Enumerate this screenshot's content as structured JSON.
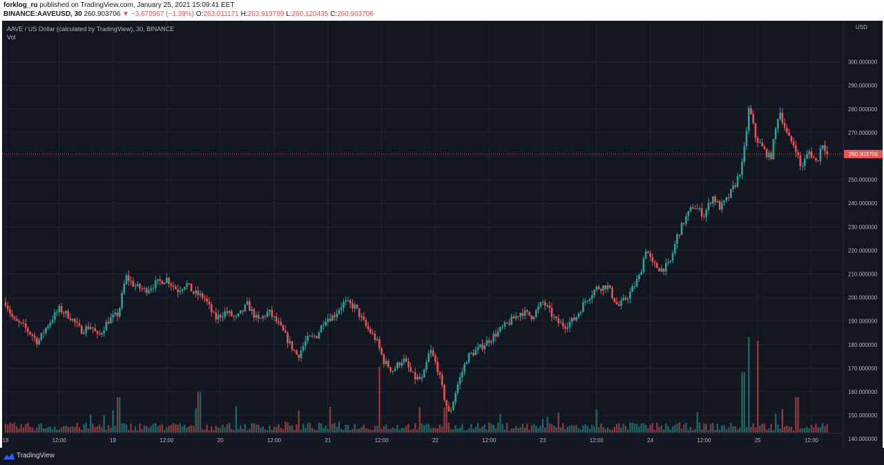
{
  "header": {
    "publisher": "forklog_ru",
    "published_text": "published on TradingView.com, January 25, 2021 15:09:41 EET",
    "symbol": "BINANCE:AAVEUSD, 30",
    "last": "260.903706",
    "change": "▼ −3.670967 (−1.39%)",
    "o_label": "O:",
    "o_value": "263.011171",
    "h_label": "H:",
    "h_value": "263.919789",
    "l_label": "L:",
    "l_value": "260.120435",
    "c_label": "C:",
    "c_value": "260.903706"
  },
  "legend": {
    "main": "AAVE / US Dollar (calculated by TradingView), 30, BINANCE",
    "vol": "Vol"
  },
  "axis": {
    "currency": "USD"
  },
  "footer": {
    "brand": "TradingView"
  },
  "colors": {
    "up": "#26a69a",
    "down": "#ef5350",
    "background": "#131722",
    "grid": "#1f2330",
    "text": "#b2b5be"
  },
  "chart_data": {
    "type": "candlestick",
    "interval": "30",
    "y_axis": {
      "ticks": [
        140,
        150,
        160,
        170,
        180,
        190,
        200,
        210,
        220,
        230,
        240,
        250,
        260,
        270,
        280,
        290,
        300
      ],
      "decimals": 6
    },
    "x_axis": {
      "ticks": [
        {
          "label": "18",
          "day": 0
        },
        {
          "label": "12:00",
          "day": 0.5
        },
        {
          "label": "19",
          "day": 1
        },
        {
          "label": "12:00",
          "day": 1.5
        },
        {
          "label": "20",
          "day": 2
        },
        {
          "label": "12:00",
          "day": 2.5
        },
        {
          "label": "21",
          "day": 3
        },
        {
          "label": "12:00",
          "day": 3.5
        },
        {
          "label": "22",
          "day": 4
        },
        {
          "label": "12:00",
          "day": 4.5
        },
        {
          "label": "23",
          "day": 5
        },
        {
          "label": "12:00",
          "day": 5.5
        },
        {
          "label": "24",
          "day": 6
        },
        {
          "label": "12:00",
          "day": 6.5
        },
        {
          "label": "25",
          "day": 7
        },
        {
          "label": "12:00",
          "day": 7.5
        }
      ]
    },
    "last_price": 260.903706,
    "last_price_label": "260.903706",
    "series": [
      {
        "day": 0.0,
        "close": 198
      },
      {
        "day": 0.08,
        "close": 190
      },
      {
        "day": 0.16,
        "close": 188
      },
      {
        "day": 0.25,
        "close": 184
      },
      {
        "day": 0.3,
        "close": 181
      },
      {
        "day": 0.4,
        "close": 189
      },
      {
        "day": 0.5,
        "close": 195
      },
      {
        "day": 0.6,
        "close": 192
      },
      {
        "day": 0.7,
        "close": 186
      },
      {
        "day": 0.8,
        "close": 188
      },
      {
        "day": 0.86,
        "close": 183
      },
      {
        "day": 0.95,
        "close": 190
      },
      {
        "day": 1.05,
        "close": 193
      },
      {
        "day": 1.12,
        "close": 209
      },
      {
        "day": 1.2,
        "close": 205
      },
      {
        "day": 1.3,
        "close": 203
      },
      {
        "day": 1.4,
        "close": 206
      },
      {
        "day": 1.5,
        "close": 208
      },
      {
        "day": 1.6,
        "close": 203
      },
      {
        "day": 1.68,
        "close": 206
      },
      {
        "day": 1.75,
        "close": 202
      },
      {
        "day": 1.85,
        "close": 200
      },
      {
        "day": 1.95,
        "close": 191
      },
      {
        "day": 2.05,
        "close": 194
      },
      {
        "day": 2.15,
        "close": 191
      },
      {
        "day": 2.25,
        "close": 197
      },
      {
        "day": 2.35,
        "close": 190
      },
      {
        "day": 2.45,
        "close": 194
      },
      {
        "day": 2.55,
        "close": 188
      },
      {
        "day": 2.65,
        "close": 180
      },
      {
        "day": 2.72,
        "close": 175
      },
      {
        "day": 2.8,
        "close": 182
      },
      {
        "day": 2.9,
        "close": 184
      },
      {
        "day": 2.97,
        "close": 191
      },
      {
        "day": 3.05,
        "close": 192
      },
      {
        "day": 3.15,
        "close": 198
      },
      {
        "day": 3.25,
        "close": 196
      },
      {
        "day": 3.35,
        "close": 188
      },
      {
        "day": 3.45,
        "close": 182
      },
      {
        "day": 3.52,
        "close": 173
      },
      {
        "day": 3.6,
        "close": 169
      },
      {
        "day": 3.7,
        "close": 174
      },
      {
        "day": 3.8,
        "close": 166
      },
      {
        "day": 3.88,
        "close": 165
      },
      {
        "day": 3.95,
        "close": 178
      },
      {
        "day": 4.02,
        "close": 170
      },
      {
        "day": 4.08,
        "close": 158
      },
      {
        "day": 4.13,
        "close": 150
      },
      {
        "day": 4.2,
        "close": 162
      },
      {
        "day": 4.3,
        "close": 175
      },
      {
        "day": 4.4,
        "close": 178
      },
      {
        "day": 4.5,
        "close": 182
      },
      {
        "day": 4.6,
        "close": 186
      },
      {
        "day": 4.7,
        "close": 190
      },
      {
        "day": 4.8,
        "close": 194
      },
      {
        "day": 4.9,
        "close": 192
      },
      {
        "day": 5.0,
        "close": 198
      },
      {
        "day": 5.05,
        "close": 195
      },
      {
        "day": 5.12,
        "close": 190
      },
      {
        "day": 5.2,
        "close": 188
      },
      {
        "day": 5.3,
        "close": 191
      },
      {
        "day": 5.4,
        "close": 199
      },
      {
        "day": 5.5,
        "close": 204
      },
      {
        "day": 5.6,
        "close": 205
      },
      {
        "day": 5.7,
        "close": 196
      },
      {
        "day": 5.8,
        "close": 201
      },
      {
        "day": 5.9,
        "close": 209
      },
      {
        "day": 5.96,
        "close": 221
      },
      {
        "day": 6.02,
        "close": 214
      },
      {
        "day": 6.1,
        "close": 212
      },
      {
        "day": 6.18,
        "close": 214
      },
      {
        "day": 6.25,
        "close": 226
      },
      {
        "day": 6.32,
        "close": 233
      },
      {
        "day": 6.4,
        "close": 239
      },
      {
        "day": 6.5,
        "close": 235
      },
      {
        "day": 6.58,
        "close": 243
      },
      {
        "day": 6.65,
        "close": 238
      },
      {
        "day": 6.72,
        "close": 242
      },
      {
        "day": 6.8,
        "close": 249
      },
      {
        "day": 6.86,
        "close": 257
      },
      {
        "day": 6.92,
        "close": 281
      },
      {
        "day": 6.98,
        "close": 268
      },
      {
        "day": 7.05,
        "close": 263
      },
      {
        "day": 7.12,
        "close": 259
      },
      {
        "day": 7.2,
        "close": 280
      },
      {
        "day": 7.28,
        "close": 268
      },
      {
        "day": 7.35,
        "close": 264
      },
      {
        "day": 7.4,
        "close": 255
      },
      {
        "day": 7.48,
        "close": 262
      },
      {
        "day": 7.55,
        "close": 257
      },
      {
        "day": 7.6,
        "close": 266
      },
      {
        "day": 7.65,
        "close": 261
      }
    ],
    "volume": {
      "baseline": 1,
      "spikes": [
        {
          "day": 1.05,
          "value": 7
        },
        {
          "day": 1.8,
          "value": 8
        },
        {
          "day": 3.48,
          "value": 13
        },
        {
          "day": 4.1,
          "value": 5
        },
        {
          "day": 6.87,
          "value": 12
        },
        {
          "day": 6.92,
          "value": 19
        },
        {
          "day": 7.0,
          "value": 7
        },
        {
          "day": 7.37,
          "value": 7
        }
      ]
    }
  }
}
